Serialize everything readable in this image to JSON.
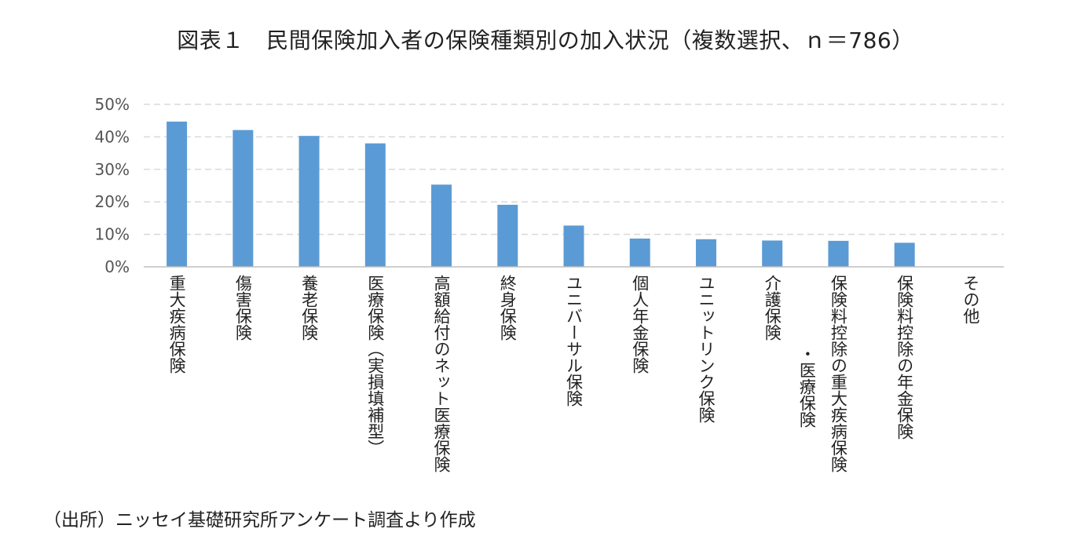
{
  "title": "図表１　民間保険加入者の保険種類別の加入状況（複数選択、ｎ＝786）",
  "source": "（出所）ニッセイ基礎研究所アンケート調査より作成",
  "colors": {
    "bar": "#5b9bd5",
    "grid": "#d9d9d9",
    "axis": "#bfbfbf"
  },
  "chart_data": {
    "type": "bar",
    "title": "図表１　民間保険加入者の保険種類別の加入状況（複数選択、ｎ＝786）",
    "xlabel": "",
    "ylabel": "",
    "ylim": [
      0,
      50
    ],
    "y_ticks": [
      "0%",
      "10%",
      "20%",
      "30%",
      "40%",
      "50%"
    ],
    "grid": true,
    "legend": "none",
    "categories": [
      "重大疾病保険",
      "傷害保険",
      "養老保険",
      "医療保険（実損填補型）",
      "高額給付のネット医療保険",
      "終身保険",
      "ユニバーサル保険",
      "個人年金保険",
      "ユニットリンク保険",
      "介護保険",
      "保険料控除の重大疾病保険・医療保険",
      "保険料控除の年金保険",
      "その他"
    ],
    "values": [
      44.7,
      42.1,
      40.3,
      38.0,
      25.3,
      19.1,
      12.7,
      8.7,
      8.5,
      8.1,
      8.0,
      7.4,
      0.0
    ]
  }
}
